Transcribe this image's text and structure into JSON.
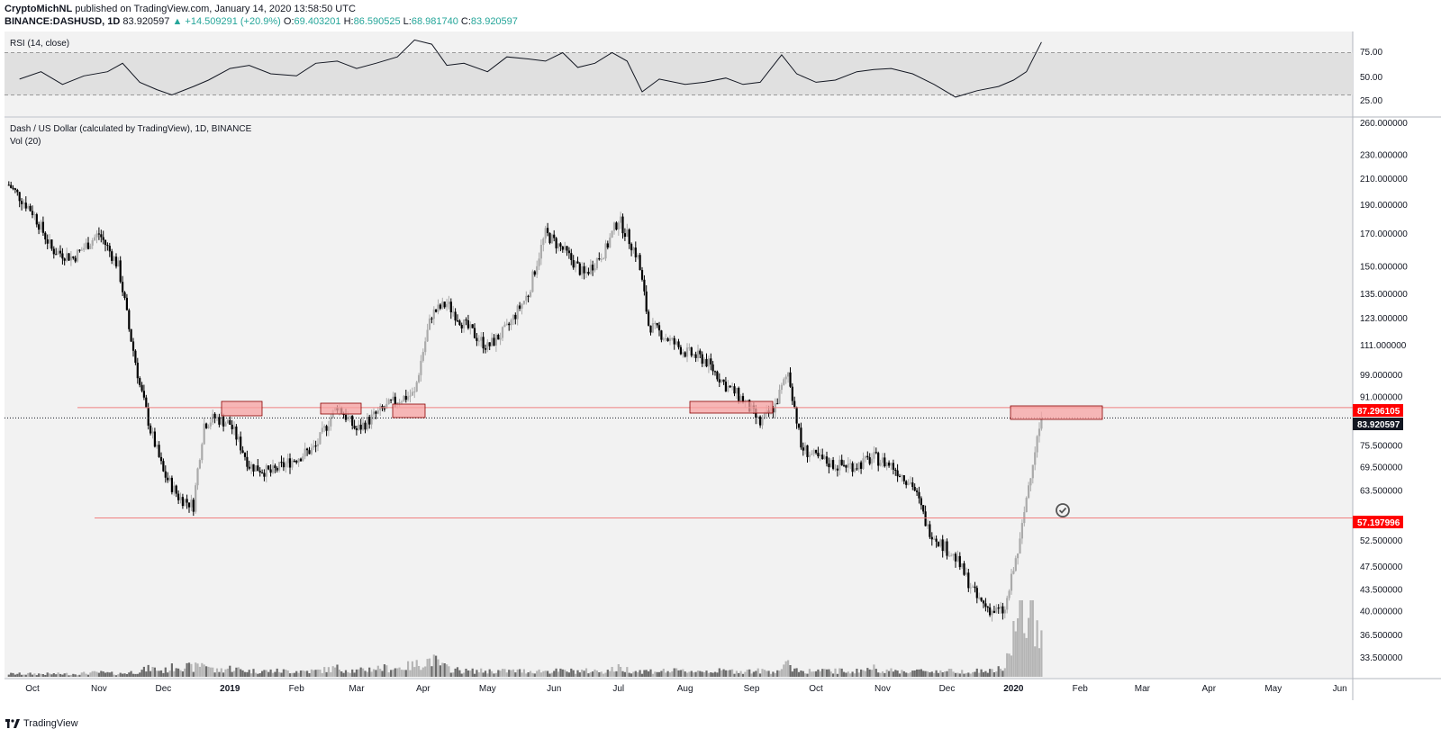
{
  "header": {
    "author": "CryptoMichNL",
    "published_text": "published on TradingView.com, January 14, 2020 13:58:50 UTC",
    "symbol": "BINANCE:DASHUSD, 1D",
    "last": "83.920597",
    "change": "▲ +14.509291 (+20.9%)",
    "o_label": "O:",
    "o": "69.403201",
    "h_label": "H:",
    "h": "86.590525",
    "l_label": "L:",
    "l": "68.981740",
    "c_label": "C:",
    "c": "83.920597"
  },
  "rsi_pane": {
    "title": "RSI (14, close)",
    "ticks": [
      "75.00",
      "50.00",
      "25.00"
    ]
  },
  "main_pane": {
    "title": "Dash / US Dollar (calculated by TradingView), 1D, BINANCE",
    "vol_label": "Vol (20)"
  },
  "price_labels": {
    "resistance": "87.296105",
    "current": "83.920597",
    "support": "57.197996"
  },
  "footer": {
    "brand": "TradingView"
  },
  "colors": {
    "up_candle": "#aaaaaa",
    "down_candle": "#000000",
    "level_line": "#f08080",
    "zone_fill": "#f7a1a1",
    "label_red": "#ff0000",
    "label_dark": "#131722",
    "rsi_band": "#e0e0e0"
  },
  "chart_data": [
    {
      "type": "line",
      "title": "RSI (14, close)",
      "ylim": [
        10,
        90
      ],
      "bands": [
        30,
        70
      ],
      "ticks": [
        75,
        50,
        25
      ],
      "series": [
        {
          "x": [
            "2018-09-25",
            "2018-10-05",
            "2018-10-15",
            "2018-10-25",
            "2018-11-05",
            "2018-11-12",
            "2018-11-20",
            "2018-11-28",
            "2018-12-05",
            "2018-12-15",
            "2018-12-22",
            "2019-01-01",
            "2019-01-10",
            "2019-01-20",
            "2019-02-01",
            "2019-02-10",
            "2019-02-20",
            "2019-03-01",
            "2019-03-10",
            "2019-03-20",
            "2019-03-28",
            "2019-04-05",
            "2019-04-12",
            "2019-04-20",
            "2019-05-01",
            "2019-05-10",
            "2019-05-20",
            "2019-05-28",
            "2019-06-05",
            "2019-06-12",
            "2019-06-20",
            "2019-06-28",
            "2019-07-05",
            "2019-07-12",
            "2019-07-20",
            "2019-08-01",
            "2019-08-10",
            "2019-08-20",
            "2019-08-28",
            "2019-09-05",
            "2019-09-15",
            "2019-09-22",
            "2019-10-01",
            "2019-10-10",
            "2019-10-20",
            "2019-10-28",
            "2019-11-05",
            "2019-11-15",
            "2019-11-25",
            "2019-12-05",
            "2019-12-15",
            "2019-12-25",
            "2020-01-01",
            "2020-01-07",
            "2020-01-14"
          ],
          "values": [
            45,
            52,
            40,
            48,
            52,
            60,
            42,
            35,
            30,
            38,
            44,
            55,
            58,
            50,
            48,
            60,
            62,
            55,
            60,
            66,
            82,
            78,
            58,
            60,
            52,
            66,
            64,
            62,
            70,
            56,
            60,
            70,
            62,
            33,
            45,
            40,
            42,
            46,
            40,
            42,
            68,
            50,
            42,
            44,
            52,
            54,
            55,
            50,
            40,
            28,
            34,
            38,
            44,
            52,
            80
          ]
        }
      ]
    },
    {
      "type": "candlestick",
      "title": "Dash / US Dollar (calculated by TradingView), 1D, BINANCE",
      "ylabel": "",
      "scale": "log",
      "ylim": [
        31,
        265
      ],
      "y_ticks": [
        260,
        230,
        210,
        190,
        170,
        150,
        135,
        123,
        111,
        99,
        91,
        75.5,
        69.5,
        63.5,
        52.5,
        47.5,
        43.5,
        40,
        36.5,
        33.5
      ],
      "x_ticks": [
        "Oct",
        "Nov",
        "Dec",
        "2019",
        "Feb",
        "Mar",
        "Apr",
        "May",
        "Jun",
        "Jul",
        "Aug",
        "Sep",
        "Oct",
        "Nov",
        "Dec",
        "2020",
        "Feb",
        "Mar",
        "Apr",
        "May",
        "Jun"
      ],
      "series": [
        {
          "name": "DASHUSD",
          "x": [
            "2018-09-20",
            "2018-10-01",
            "2018-10-10",
            "2018-10-20",
            "2018-11-01",
            "2018-11-10",
            "2018-11-15",
            "2018-11-20",
            "2018-11-25",
            "2018-12-01",
            "2018-12-08",
            "2018-12-15",
            "2018-12-20",
            "2018-12-25",
            "2019-01-01",
            "2019-01-10",
            "2019-01-20",
            "2019-02-01",
            "2019-02-10",
            "2019-02-20",
            "2019-03-01",
            "2019-03-10",
            "2019-03-20",
            "2019-03-28",
            "2019-04-05",
            "2019-04-12",
            "2019-04-20",
            "2019-05-01",
            "2019-05-10",
            "2019-05-20",
            "2019-05-28",
            "2019-06-05",
            "2019-06-15",
            "2019-06-25",
            "2019-07-01",
            "2019-07-10",
            "2019-07-15",
            "2019-07-22",
            "2019-08-01",
            "2019-08-10",
            "2019-08-20",
            "2019-08-28",
            "2019-09-05",
            "2019-09-12",
            "2019-09-18",
            "2019-09-24",
            "2019-10-01",
            "2019-10-10",
            "2019-10-20",
            "2019-10-28",
            "2019-11-05",
            "2019-11-15",
            "2019-11-22",
            "2019-11-28",
            "2019-12-05",
            "2019-12-15",
            "2019-12-22",
            "2019-12-28",
            "2020-01-04",
            "2020-01-08",
            "2020-01-14"
          ],
          "values": [
            205,
            185,
            160,
            155,
            170,
            150,
            118,
            95,
            80,
            68,
            62,
            60,
            82,
            84,
            82,
            70,
            68,
            72,
            75,
            88,
            80,
            85,
            90,
            92,
            125,
            130,
            120,
            110,
            118,
            135,
            170,
            160,
            145,
            160,
            180,
            155,
            120,
            115,
            108,
            105,
            95,
            90,
            82,
            88,
            100,
            75,
            72,
            70,
            70,
            72,
            70,
            65,
            55,
            52,
            49,
            42,
            40,
            40,
            52,
            65,
            83.92
          ]
        }
      ],
      "volume": [
        1,
        1,
        1,
        1,
        1.5,
        1,
        1.5,
        2,
        3,
        2,
        4,
        3,
        5,
        2,
        3,
        2,
        2,
        2,
        2,
        3,
        2,
        3,
        3,
        4,
        6,
        3,
        2,
        2,
        2,
        2,
        2,
        2,
        2,
        2,
        3,
        2,
        2,
        2,
        2,
        2,
        2,
        2,
        2,
        2,
        4,
        2,
        2,
        2,
        2,
        3,
        2,
        2,
        2,
        2,
        2,
        2,
        2,
        3,
        25,
        20,
        18
      ],
      "levels": [
        87.296105,
        57.197996
      ],
      "annotations": [
        "87.296105",
        "83.920597",
        "57.197996"
      ]
    }
  ]
}
